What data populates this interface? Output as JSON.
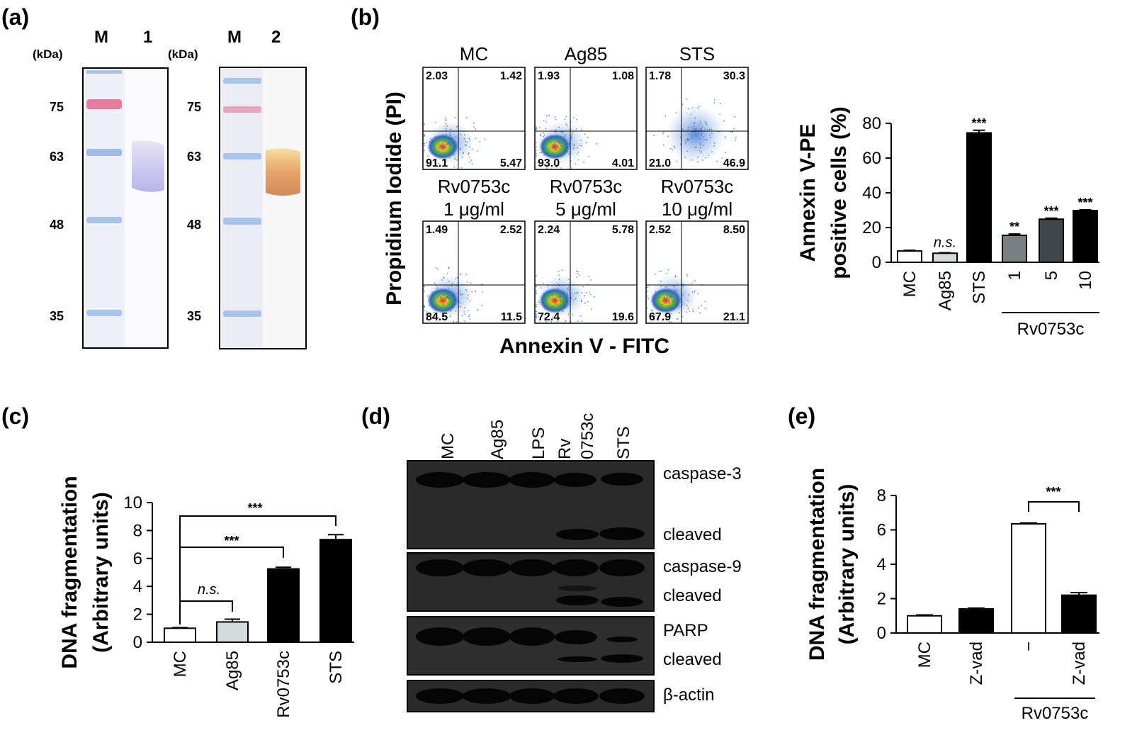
{
  "panel_a": {
    "label": "(a)",
    "kda": "(kDa)",
    "gel1": {
      "lane_m": "M",
      "lane_s": "1"
    },
    "gel2": {
      "lane_m": "M",
      "lane_s": "2"
    },
    "markers": [
      "75",
      "63",
      "48",
      "35"
    ]
  },
  "panel_b": {
    "label": "(b)",
    "y_axis": "Propidium Iodide (PI)",
    "x_axis": "Annexin V - FITC",
    "plots": [
      {
        "title1": "MC",
        "title2": "",
        "ul": "2.03",
        "ur": "1.42",
        "ll": "91.1",
        "lr": "5.47"
      },
      {
        "title1": "Ag85",
        "title2": "",
        "ul": "1.93",
        "ur": "1.08",
        "ll": "93.0",
        "lr": "4.01"
      },
      {
        "title1": "STS",
        "title2": "",
        "ul": "1.78",
        "ur": "30.3",
        "ll": "21.0",
        "lr": "46.9"
      },
      {
        "title1": "Rv0753c",
        "title2": "1 μg/ml",
        "ul": "1.49",
        "ur": "2.52",
        "ll": "84.5",
        "lr": "11.5"
      },
      {
        "title1": "Rv0753c",
        "title2": "5 μg/ml",
        "ul": "2.24",
        "ur": "5.78",
        "ll": "72.4",
        "lr": "19.6"
      },
      {
        "title1": "Rv0753c",
        "title2": "10 μg/ml",
        "ul": "2.52",
        "ur": "8.50",
        "ll": "67.9",
        "lr": "21.1"
      }
    ]
  },
  "panel_c": {
    "label": "(c)"
  },
  "panel_d": {
    "label": "(d)",
    "lanes": [
      "MC",
      "Ag85",
      "LPS",
      "Rv\n0753c",
      "STS"
    ],
    "lane_rv_1": "Rv",
    "lane_rv_2": "0753c",
    "blot_labels": [
      "caspase-3",
      "cleaved",
      "caspase-9",
      "cleaved",
      "PARP",
      "cleaved",
      "β-actin"
    ]
  },
  "panel_e": {
    "label": "(e)"
  },
  "chart_data": [
    {
      "id": "b_bar",
      "type": "bar",
      "title": "",
      "ylabel_line1": "Annexin V-PE",
      "ylabel_line2": "positive cells (%)",
      "xlabel": "",
      "ylim": [
        0,
        80
      ],
      "yticks": [
        "0",
        "20",
        "40",
        "60",
        "80"
      ],
      "categories": [
        "MC",
        "Ag85",
        "STS",
        "1",
        "5",
        "10"
      ],
      "values": [
        6.5,
        5.2,
        74.5,
        15.5,
        24.8,
        29.8
      ],
      "errors": [
        0.4,
        0.3,
        1.5,
        0.8,
        0.6,
        0.4
      ],
      "colors": [
        "#ffffff",
        "#d5dadd",
        "#000000",
        "#7a7f82",
        "#3f474b",
        "#000000"
      ],
      "significance": [
        "",
        "n.s.",
        "***",
        "**",
        "***",
        "***"
      ],
      "group_label": "Rv0753c"
    },
    {
      "id": "c_bar",
      "type": "bar",
      "title": "",
      "ylabel_line1": "DNA fragmentation",
      "ylabel_line2": "(Arbitrary units)",
      "xlabel": "",
      "ylim": [
        0,
        10
      ],
      "yticks": [
        "0",
        "2",
        "4",
        "6",
        "8",
        "10"
      ],
      "categories": [
        "MC",
        "Ag85",
        "Rv0753c",
        "STS"
      ],
      "values": [
        1.0,
        1.45,
        5.25,
        7.35
      ],
      "errors": [
        0.05,
        0.2,
        0.12,
        0.35
      ],
      "colors": [
        "#ffffff",
        "#d5dadd",
        "#000000",
        "#000000"
      ],
      "comparisons": [
        {
          "text": "n.s."
        },
        {
          "text": "***"
        },
        {
          "text": "***"
        }
      ]
    },
    {
      "id": "e_bar",
      "type": "bar",
      "title": "",
      "ylabel_line1": "DNA fragmentation",
      "ylabel_line2": "(Arbitrary units)",
      "xlabel": "",
      "ylim": [
        0,
        8
      ],
      "yticks": [
        "0",
        "2",
        "4",
        "6",
        "8"
      ],
      "categories": [
        "MC",
        "Z-vad",
        "−",
        "Z-vad"
      ],
      "values": [
        1.0,
        1.4,
        6.35,
        2.2
      ],
      "errors": [
        0.05,
        0.05,
        0.05,
        0.15
      ],
      "colors": [
        "#ffffff",
        "#000000",
        "#ffffff",
        "#000000"
      ],
      "comparisons": [
        {
          "text": "***"
        }
      ],
      "group_label": "Rv0753c"
    }
  ]
}
